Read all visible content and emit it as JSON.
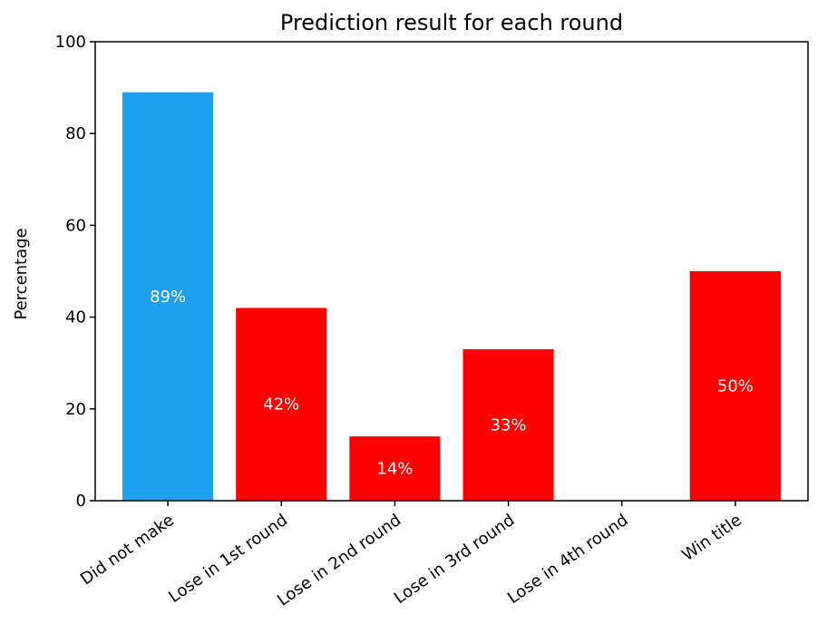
{
  "chart_data": {
    "type": "bar",
    "title": "Prediction result for each round",
    "xlabel": "",
    "ylabel": "Percentage",
    "ylim": [
      0,
      100
    ],
    "yticks": [
      0,
      20,
      40,
      60,
      80,
      100
    ],
    "grid": false,
    "categories": [
      "Did not make",
      "Lose in 1st round",
      "Lose in 2nd round",
      "Lose in 3rd round",
      "Lose in 4th round",
      "Win title"
    ],
    "values": [
      89,
      42,
      14,
      33,
      0,
      50
    ],
    "value_labels": [
      "89%",
      "42%",
      "14%",
      "33%",
      "",
      "50%"
    ],
    "bar_colors": [
      "#1f9ff0",
      "#ff0000",
      "#ff0000",
      "#ff0000",
      "#ff0000",
      "#ff0000"
    ]
  }
}
